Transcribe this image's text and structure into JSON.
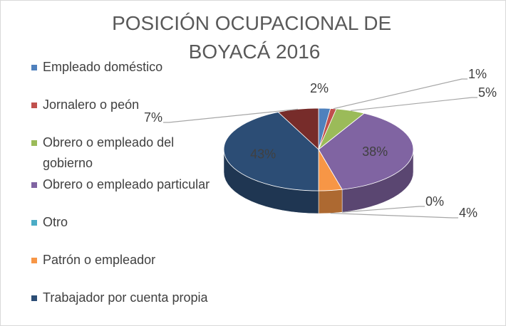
{
  "chart_data": {
    "type": "pie3d",
    "title": "POSICIÓN OCUPACIONAL  DE BOYACÁ 2016",
    "categories": [
      "Empleado doméstico",
      "Jornalero o peón",
      "Obrero o empleado del gobierno",
      "Obrero o empleado particular",
      "Otro",
      "Patrón o empleador",
      "Trabajador por cuenta propia",
      null
    ],
    "values": [
      2,
      1,
      5,
      38,
      0,
      4,
      43,
      7
    ],
    "value_labels": [
      "2%",
      "1%",
      "5%",
      "38%",
      "0%",
      "4%",
      "43%",
      "7%"
    ],
    "colors": [
      "#4f81bd",
      "#c0504d",
      "#9bbb59",
      "#8064a2",
      "#4bacc6",
      "#f79646",
      "#2c4d75",
      "#772c2a"
    ],
    "legend": "left"
  }
}
